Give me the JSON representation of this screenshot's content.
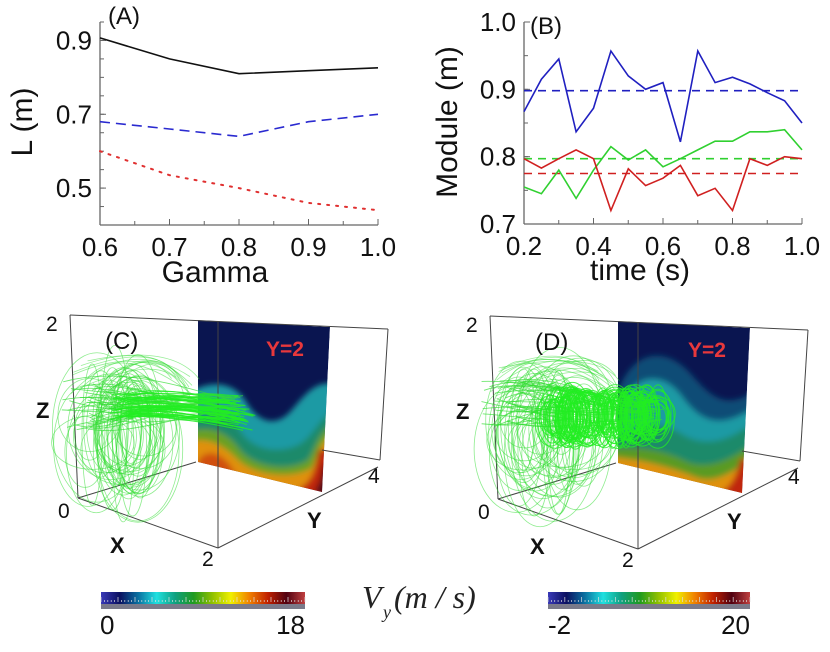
{
  "chart_data": [
    {
      "panel": "(A)",
      "type": "line",
      "xlabel": "Gamma",
      "ylabel": "L (m)",
      "xlim": [
        0.6,
        1.0
      ],
      "ylim": [
        0.4,
        0.95
      ],
      "xticks": [
        "0.6",
        "0.7",
        "0.8",
        "0.9",
        "1.0"
      ],
      "yticks": [
        "0.9",
        "0.7",
        "0.5"
      ],
      "grid": false,
      "x": [
        0.6,
        0.7,
        0.8,
        0.9,
        1.0
      ],
      "series": [
        {
          "color": "#111111",
          "style": "solid",
          "values": [
            0.907,
            0.85,
            0.81,
            0.818,
            0.826
          ]
        },
        {
          "color": "#2a2ad0",
          "style": "dashed",
          "values": [
            0.68,
            0.66,
            0.64,
            0.68,
            0.7
          ]
        },
        {
          "color": "#e03030",
          "style": "dotted",
          "values": [
            0.6,
            0.535,
            0.5,
            0.46,
            0.44
          ]
        }
      ]
    },
    {
      "panel": "(B)",
      "type": "line",
      "xlabel": "time (s)",
      "ylabel": "Module (m)",
      "xlim": [
        0.2,
        1.0
      ],
      "ylim": [
        0.7,
        1.0
      ],
      "xticks": [
        "0.2",
        "0.4",
        "0.6",
        "0.8",
        "1.0"
      ],
      "yticks": [
        "1.0",
        "0.9",
        "0.8",
        "0.7"
      ],
      "grid": false,
      "x": [
        0.2,
        0.25,
        0.3,
        0.35,
        0.4,
        0.45,
        0.5,
        0.55,
        0.6,
        0.65,
        0.7,
        0.75,
        0.8,
        0.85,
        0.9,
        0.95,
        1.0
      ],
      "series": [
        {
          "color": "#2020c0",
          "style": "solid",
          "values": [
            0.867,
            0.915,
            0.945,
            0.837,
            0.872,
            0.957,
            0.92,
            0.9,
            0.91,
            0.822,
            0.957,
            0.91,
            0.918,
            0.908,
            0.895,
            0.883,
            0.85
          ]
        },
        {
          "color": "#30d030",
          "style": "solid",
          "values": [
            0.755,
            0.745,
            0.78,
            0.738,
            0.78,
            0.815,
            0.795,
            0.81,
            0.785,
            0.797,
            0.81,
            0.823,
            0.823,
            0.837,
            0.837,
            0.84,
            0.81
          ]
        },
        {
          "color": "#d02020",
          "style": "solid",
          "values": [
            0.797,
            0.783,
            0.797,
            0.81,
            0.797,
            0.72,
            0.782,
            0.757,
            0.768,
            0.787,
            0.742,
            0.753,
            0.72,
            0.797,
            0.787,
            0.8,
            0.797
          ]
        }
      ],
      "mean_lines": [
        {
          "color": "#2020c0",
          "value": 0.898
        },
        {
          "color": "#30d030",
          "value": 0.797
        },
        {
          "color": "#d02020",
          "value": 0.775
        }
      ]
    }
  ],
  "panels3d": [
    {
      "label": "(C)",
      "plane_label": "Y=2",
      "z_label": "Z",
      "x_label": "X",
      "y_label": "Y",
      "z_top": "2",
      "origin": "0",
      "x_end": "2",
      "y_end": "4",
      "streamline_color": "#33dd33",
      "colorbar": {
        "min": "0",
        "max": "18"
      }
    },
    {
      "label": "(D)",
      "plane_label": "Y=2",
      "z_label": "Z",
      "x_label": "X",
      "y_label": "Y",
      "z_top": "2",
      "origin": "0",
      "x_end": "2",
      "y_end": "4",
      "streamline_color": "#33dd33",
      "colorbar": {
        "min": "-2",
        "max": "20"
      }
    }
  ],
  "colorbar_label": {
    "main": "V",
    "sub": "y",
    "unit": "(m / s)"
  },
  "colormap": [
    "#3a3ab8",
    "#0b1060",
    "#0a70a0",
    "#20e0e0",
    "#10a080",
    "#209a20",
    "#90c000",
    "#f0f000",
    "#f08000",
    "#c02000",
    "#500010",
    "#c04040"
  ]
}
